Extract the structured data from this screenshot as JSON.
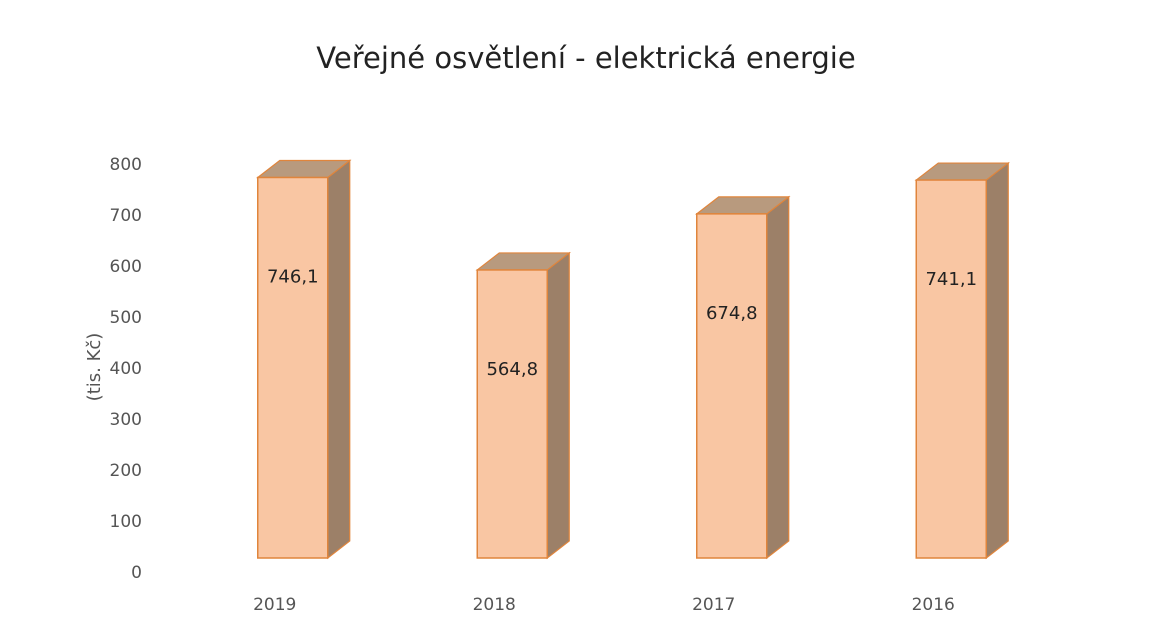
{
  "chart_data": {
    "type": "bar3d",
    "title": "Veřejné osvětlení - elektrická energie",
    "y_label": "(tis. Kč)",
    "categories": [
      "2019",
      "2018",
      "2017",
      "2016"
    ],
    "values": [
      746.1,
      564.8,
      674.8,
      741.1
    ],
    "value_labels": [
      "746,1",
      "564,8",
      "674,8",
      "741,1"
    ],
    "color": "#f9c6a3",
    "ylim": [
      0,
      800
    ],
    "yticks": [
      0,
      100,
      200,
      300,
      400,
      500,
      600,
      700,
      800
    ],
    "grid": false
  }
}
